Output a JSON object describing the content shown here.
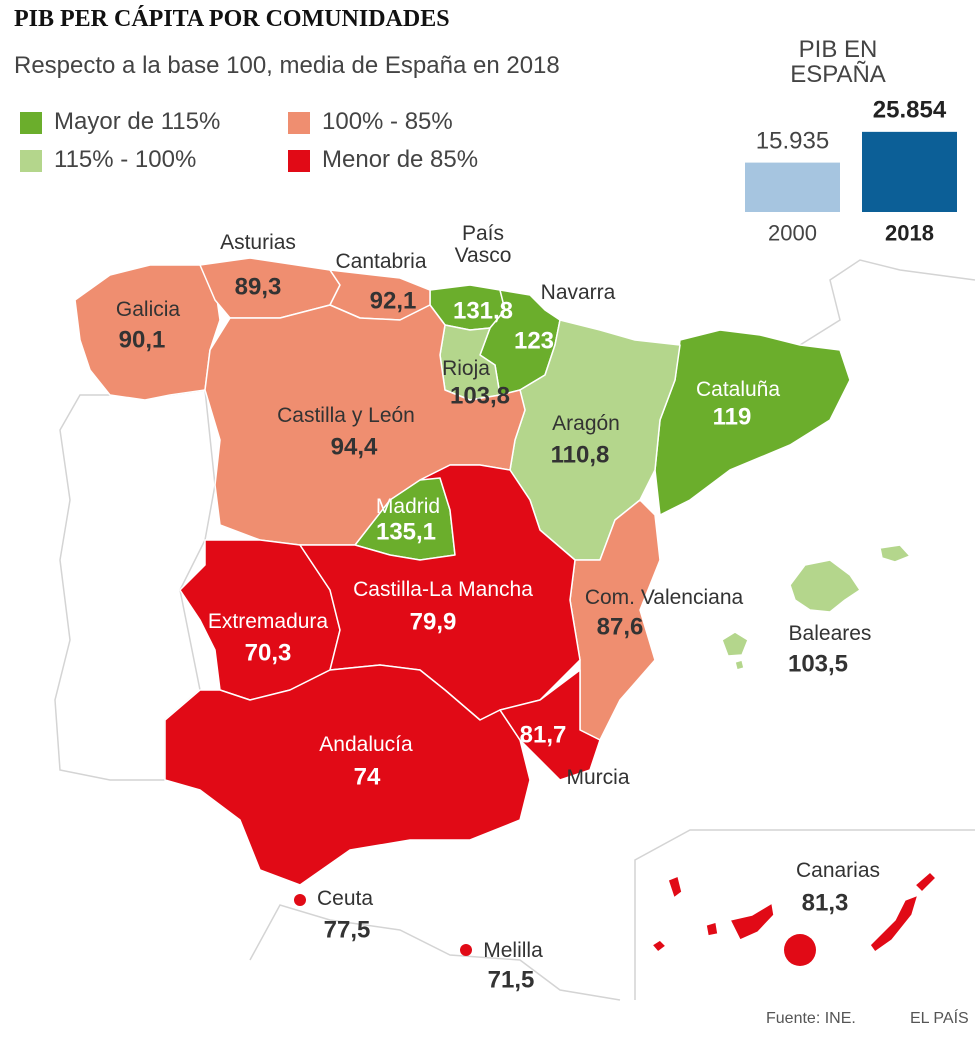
{
  "title": "PIB PER CÁPITA POR COMUNIDADES",
  "subtitle": "Respecto a la base 100, media de España en 2018",
  "legend": [
    {
      "label": "Mayor de 115%",
      "color": "#6bae2c",
      "regions": [
        {
          "name": "País\nVasco",
          "value": 131.8,
          "value_label": "131,8"
        },
        {
          "name": "Navarra",
          "value": 123
        },
        {
          "name": "Madrid",
          "value": 135.1,
          "value_label": "135,1"
        },
        {
          "name": "Cataluña",
          "value": 119
        }
      ]
    },
    {
      "label": "115% - 100%",
      "color": "#b4d68c",
      "regions": [
        {
          "name": "Rioja",
          "value": 103.8,
          "value_label": "103,8"
        },
        {
          "name": "Aragón",
          "value": 110.8,
          "value_label": "110,8"
        },
        {
          "name": "Baleares",
          "value": 103.5,
          "value_label": "103,5"
        }
      ]
    },
    {
      "label": "100% - 85%",
      "color": "#ef8e70",
      "regions": [
        {
          "name": "Galicia",
          "value": 90.1,
          "value_label": "90,1"
        },
        {
          "name": "Asturias",
          "value": 89.3,
          "value_label": "89,3"
        },
        {
          "name": "Cantabria",
          "value": 92.1,
          "value_label": "92,1"
        },
        {
          "name": "Castilla y León",
          "value": 94.4,
          "value_label": "94,4"
        },
        {
          "name": "Com. Valenciana",
          "value": 87.6,
          "value_label": "87,6"
        }
      ]
    },
    {
      "label": "Menor de 85%",
      "color": "#e10a16",
      "regions": [
        {
          "name": "Extremadura",
          "value": 70.3,
          "value_label": "70,3"
        },
        {
          "name": "Castilla-La Mancha",
          "value": 79.9,
          "value_label": "79,9"
        },
        {
          "name": "Andalucía",
          "value": 74
        },
        {
          "name": "Murcia",
          "value": 81.7,
          "value_label": "81,7"
        },
        {
          "name": "Canarias",
          "value": 81.3,
          "value_label": "81,3"
        },
        {
          "name": "Ceuta",
          "value": 77.5,
          "value_label": "77,5"
        },
        {
          "name": "Melilla",
          "value": 71.5,
          "value_label": "71,5"
        }
      ]
    }
  ],
  "chart_data": {
    "type": "bar",
    "title": "PIB EN ESPAÑA",
    "categories": [
      "2000",
      "2018"
    ],
    "values": [
      15935,
      25854
    ],
    "value_labels": [
      "15.935",
      "25.854"
    ],
    "colors": [
      "#a6c5e0",
      "#0c5f97"
    ]
  },
  "footer": {
    "source": "Fuente: INE.",
    "brand": "EL PAÍS"
  }
}
